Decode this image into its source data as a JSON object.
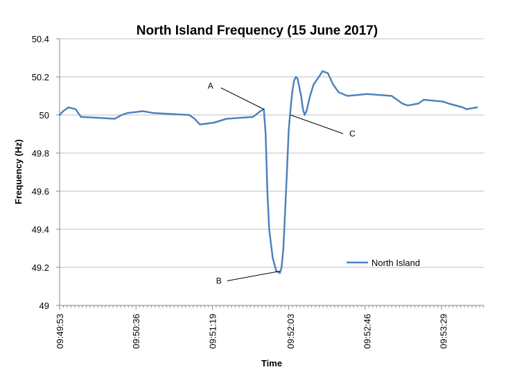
{
  "chart_data": {
    "type": "line",
    "title": "North Island Frequency (15 June 2017)",
    "xlabel": "Time",
    "ylabel": "Frequency (Hz)",
    "ylim": [
      49,
      50.4
    ],
    "yticks": [
      "49",
      "49.2",
      "49.4",
      "49.6",
      "49.8",
      "50",
      "50.2",
      "50.4"
    ],
    "xticks": [
      "09:49:53",
      "09:50:36",
      "09:51:19",
      "09:52:03",
      "09:52:46",
      "09:53:29"
    ],
    "grid": "horizontal",
    "legend_position": "bottom-right",
    "series": [
      {
        "name": "North Island",
        "color": "#4f81bd",
        "points": [
          [
            "09:49:53",
            50.0
          ],
          [
            "09:49:55",
            50.02
          ],
          [
            "09:49:58",
            50.04
          ],
          [
            "09:50:02",
            50.03
          ],
          [
            "09:50:05",
            49.99
          ],
          [
            "09:50:24",
            49.98
          ],
          [
            "09:50:28",
            50.0
          ],
          [
            "09:50:31",
            50.01
          ],
          [
            "09:50:40",
            50.02
          ],
          [
            "09:50:46",
            50.01
          ],
          [
            "09:51:06",
            50.0
          ],
          [
            "09:51:09",
            49.98
          ],
          [
            "09:51:12",
            49.95
          ],
          [
            "09:51:20",
            49.96
          ],
          [
            "09:51:27",
            49.98
          ],
          [
            "09:51:42",
            49.99
          ],
          [
            "09:51:46",
            50.02
          ],
          [
            "09:51:48",
            50.03
          ],
          [
            "09:51:49",
            49.9
          ],
          [
            "09:51:50",
            49.6
          ],
          [
            "09:51:51",
            49.4
          ],
          [
            "09:51:53",
            49.25
          ],
          [
            "09:51:55",
            49.18
          ],
          [
            "09:51:57",
            49.17
          ],
          [
            "09:51:58",
            49.2
          ],
          [
            "09:51:59",
            49.3
          ],
          [
            "09:52:00",
            49.5
          ],
          [
            "09:52:01",
            49.7
          ],
          [
            "09:52:02",
            49.92
          ],
          [
            "09:52:03",
            50.03
          ],
          [
            "09:52:04",
            50.12
          ],
          [
            "09:52:05",
            50.18
          ],
          [
            "09:52:06",
            50.2
          ],
          [
            "09:52:07",
            50.19
          ],
          [
            "09:52:09",
            50.1
          ],
          [
            "09:52:10",
            50.03
          ],
          [
            "09:52:11",
            50.0
          ],
          [
            "09:52:12",
            50.02
          ],
          [
            "09:52:14",
            50.1
          ],
          [
            "09:52:16",
            50.16
          ],
          [
            "09:52:19",
            50.2
          ],
          [
            "09:52:21",
            50.23
          ],
          [
            "09:52:24",
            50.22
          ],
          [
            "09:52:27",
            50.16
          ],
          [
            "09:52:30",
            50.12
          ],
          [
            "09:52:35",
            50.1
          ],
          [
            "09:52:46",
            50.11
          ],
          [
            "09:53:00",
            50.1
          ],
          [
            "09:53:03",
            50.08
          ],
          [
            "09:53:06",
            50.06
          ],
          [
            "09:53:09",
            50.05
          ],
          [
            "09:53:15",
            50.06
          ],
          [
            "09:53:18",
            50.08
          ],
          [
            "09:53:29",
            50.07
          ],
          [
            "09:53:32",
            50.06
          ],
          [
            "09:53:40",
            50.04
          ],
          [
            "09:53:42",
            50.03
          ],
          [
            "09:53:48",
            50.04
          ]
        ]
      }
    ],
    "annotations": [
      {
        "label": "A",
        "time": "09:51:48",
        "value": 50.03,
        "label_side": "upper-left"
      },
      {
        "label": "B",
        "time": "09:51:57",
        "value": 49.18,
        "label_side": "lower-left"
      },
      {
        "label": "C",
        "time": "09:52:03",
        "value": 50.0,
        "label_side": "lower-right"
      }
    ]
  }
}
